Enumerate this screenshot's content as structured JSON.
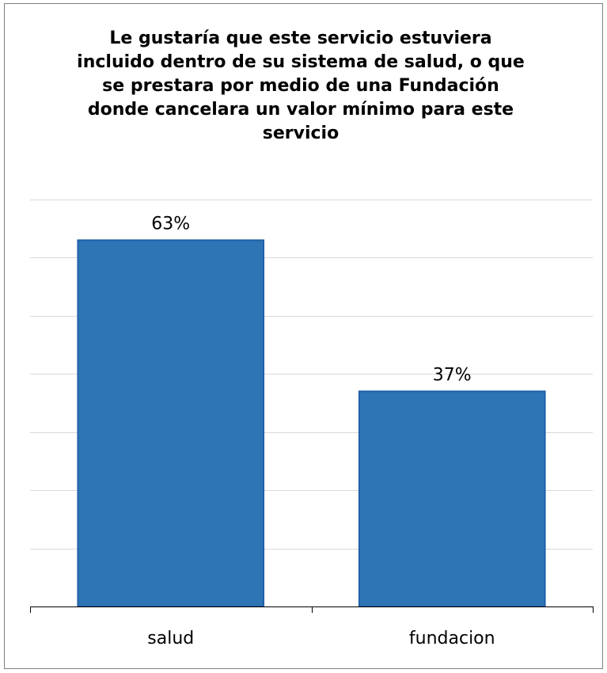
{
  "chart_data": {
    "type": "bar",
    "title": "Le gustaría que este servicio estuviera incluido dentro de su sistema de salud, o que se prestara por medio de una Fundación donde cancelara un valor mínimo para este servicio",
    "categories": [
      "salud",
      "fundacion"
    ],
    "values": [
      63,
      37
    ],
    "value_labels": [
      "63%",
      "37%"
    ],
    "xlabel": "",
    "ylabel": "",
    "ylim": [
      0,
      70
    ],
    "grid": true,
    "legend": "none",
    "colors": {
      "bar_fill": "#2e75b6",
      "bar_edge": "#1f5fa8",
      "grid": "#d9d9d9",
      "axis": "#000000"
    }
  }
}
